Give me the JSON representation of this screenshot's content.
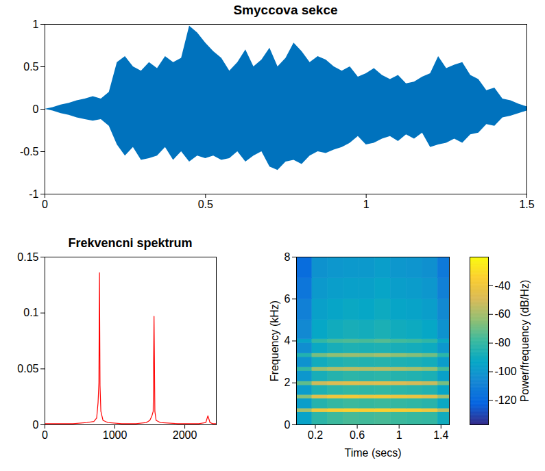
{
  "chart_data": [
    {
      "type": "area",
      "title": "Smyccova sekce",
      "color": "#0072bd",
      "x": [
        0,
        0.025,
        0.05,
        0.075,
        0.1,
        0.125,
        0.15,
        0.175,
        0.2,
        0.225,
        0.25,
        0.275,
        0.3,
        0.325,
        0.35,
        0.375,
        0.4,
        0.425,
        0.45,
        0.475,
        0.5,
        0.525,
        0.55,
        0.575,
        0.6,
        0.625,
        0.65,
        0.675,
        0.7,
        0.725,
        0.75,
        0.775,
        0.8,
        0.825,
        0.85,
        0.875,
        0.9,
        0.925,
        0.95,
        0.975,
        1.0,
        1.025,
        1.05,
        1.075,
        1.1,
        1.125,
        1.15,
        1.175,
        1.2,
        1.225,
        1.25,
        1.275,
        1.3,
        1.325,
        1.35,
        1.375,
        1.4,
        1.425,
        1.45,
        1.475,
        1.5
      ],
      "upper": [
        0.0,
        0.02,
        0.05,
        0.07,
        0.1,
        0.12,
        0.15,
        0.12,
        0.2,
        0.55,
        0.62,
        0.5,
        0.45,
        0.55,
        0.48,
        0.62,
        0.55,
        0.6,
        0.98,
        0.9,
        0.78,
        0.68,
        0.6,
        0.45,
        0.55,
        0.7,
        0.5,
        0.58,
        0.72,
        0.5,
        0.6,
        0.78,
        0.68,
        0.55,
        0.62,
        0.58,
        0.5,
        0.45,
        0.5,
        0.38,
        0.42,
        0.48,
        0.4,
        0.35,
        0.4,
        0.3,
        0.32,
        0.38,
        0.42,
        0.62,
        0.48,
        0.52,
        0.55,
        0.4,
        0.35,
        0.22,
        0.25,
        0.12,
        0.1,
        0.06,
        0.03
      ],
      "lower": [
        0.0,
        -0.02,
        -0.05,
        -0.07,
        -0.1,
        -0.12,
        -0.14,
        -0.12,
        -0.2,
        -0.42,
        -0.55,
        -0.45,
        -0.6,
        -0.58,
        -0.55,
        -0.45,
        -0.6,
        -0.5,
        -0.62,
        -0.55,
        -0.58,
        -0.55,
        -0.6,
        -0.58,
        -0.5,
        -0.62,
        -0.55,
        -0.5,
        -0.68,
        -0.72,
        -0.62,
        -0.6,
        -0.65,
        -0.55,
        -0.5,
        -0.52,
        -0.48,
        -0.45,
        -0.4,
        -0.32,
        -0.42,
        -0.4,
        -0.35,
        -0.32,
        -0.38,
        -0.3,
        -0.35,
        -0.28,
        -0.45,
        -0.42,
        -0.4,
        -0.35,
        -0.4,
        -0.3,
        -0.28,
        -0.18,
        -0.2,
        -0.1,
        -0.08,
        -0.05,
        -0.02
      ],
      "xlim": [
        0,
        1.5
      ],
      "xticks": [
        0,
        0.5,
        1,
        1.5
      ],
      "ylim": [
        -1,
        1
      ],
      "yticks": [
        -1,
        -0.5,
        0,
        0.5,
        1
      ]
    },
    {
      "type": "line",
      "title": "Frekvencni spektrum",
      "color": "#ff0000",
      "x": [
        0,
        200,
        400,
        600,
        700,
        740,
        760,
        772,
        780,
        788,
        800,
        830,
        900,
        1100,
        1300,
        1450,
        1500,
        1530,
        1548,
        1560,
        1572,
        1590,
        1650,
        1900,
        2200,
        2300,
        2330,
        2360,
        2400,
        2450
      ],
      "values": [
        0.001,
        0.001,
        0.001,
        0.002,
        0.003,
        0.006,
        0.02,
        0.038,
        0.136,
        0.035,
        0.012,
        0.004,
        0.002,
        0.001,
        0.001,
        0.002,
        0.004,
        0.008,
        0.012,
        0.097,
        0.012,
        0.004,
        0.002,
        0.001,
        0.001,
        0.002,
        0.008,
        0.002,
        0.001,
        0.001
      ],
      "xlim": [
        0,
        2450
      ],
      "xticks": [
        0,
        1000,
        2000
      ],
      "ylim": [
        0,
        0.15
      ],
      "yticks": [
        0,
        0.05,
        0.1,
        0.15
      ]
    },
    {
      "type": "heatmap",
      "x_label": "Time (secs)",
      "y_label": "Frequency (kHz)",
      "time_edges": [
        0.02,
        0.17,
        0.32,
        0.47,
        0.62,
        0.77,
        0.92,
        1.07,
        1.22,
        1.37,
        1.48
      ],
      "frequency_edges": [
        0,
        0.6,
        0.78,
        1.25,
        1.43,
        1.89,
        2.07,
        2.57,
        2.75,
        3.23,
        3.41,
        3.91,
        4.09,
        5,
        6,
        7,
        8
      ],
      "power": [
        [
          -95,
          -82,
          -78,
          -76,
          -77,
          -76,
          -78,
          -79,
          -80,
          -90
        ],
        [
          -60,
          -40,
          -36,
          -34,
          -35,
          -34,
          -36,
          -37,
          -40,
          -55
        ],
        [
          -97,
          -84,
          -80,
          -78,
          -79,
          -78,
          -80,
          -81,
          -83,
          -92
        ],
        [
          -65,
          -45,
          -40,
          -38,
          -40,
          -39,
          -41,
          -42,
          -45,
          -60
        ],
        [
          -98,
          -86,
          -82,
          -80,
          -81,
          -80,
          -82,
          -83,
          -85,
          -94
        ],
        [
          -72,
          -52,
          -48,
          -46,
          -47,
          -46,
          -48,
          -50,
          -53,
          -68
        ],
        [
          -100,
          -88,
          -84,
          -82,
          -83,
          -82,
          -84,
          -85,
          -87,
          -96
        ],
        [
          -80,
          -62,
          -58,
          -56,
          -57,
          -56,
          -58,
          -60,
          -63,
          -76
        ],
        [
          -102,
          -90,
          -86,
          -84,
          -85,
          -84,
          -86,
          -87,
          -89,
          -98
        ],
        [
          -85,
          -68,
          -64,
          -62,
          -63,
          -60,
          -64,
          -66,
          -69,
          -82
        ],
        [
          -104,
          -92,
          -88,
          -86,
          -87,
          -86,
          -88,
          -89,
          -91,
          -100
        ],
        [
          -95,
          -80,
          -76,
          -75,
          -76,
          -74,
          -77,
          -78,
          -81,
          -92
        ],
        [
          -106,
          -93,
          -90,
          -88,
          -89,
          -87,
          -90,
          -91,
          -93,
          -102
        ],
        [
          -110,
          -96,
          -94,
          -92,
          -93,
          -91,
          -94,
          -95,
          -97,
          -106
        ],
        [
          -114,
          -99,
          -97,
          -96,
          -96,
          -94,
          -97,
          -98,
          -100,
          -110
        ],
        [
          -118,
          -102,
          -100,
          -99,
          -99,
          -97,
          -100,
          -101,
          -103,
          -113
        ]
      ],
      "xlim": [
        0.02,
        1.48
      ],
      "xticks": [
        0.2,
        0.6,
        1,
        1.4
      ],
      "ylim": [
        0,
        8
      ],
      "yticks": [
        0,
        2,
        4,
        6,
        8
      ],
      "colorbar_label": "Power/frequency (dB/Hz)",
      "clim": [
        -137,
        -20
      ],
      "cticks": [
        -40,
        -60,
        -80,
        -100,
        -120
      ]
    }
  ]
}
